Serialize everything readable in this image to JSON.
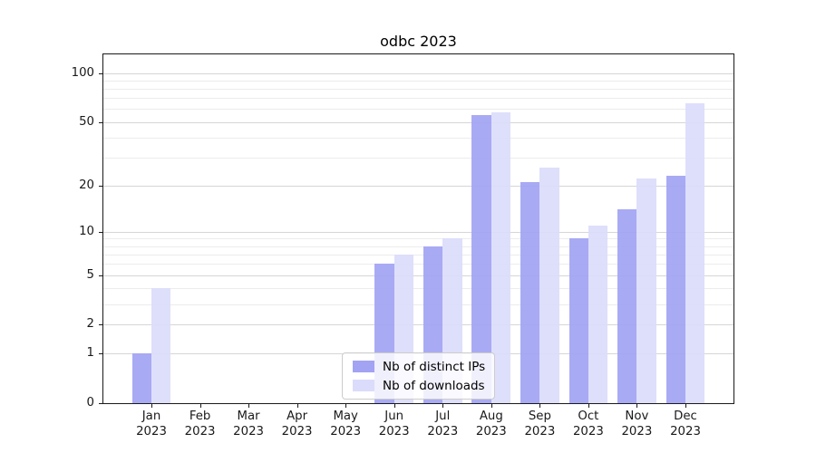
{
  "title": "odbc 2023",
  "legend": {
    "items": [
      {
        "label": "Nb of distinct IPs",
        "color": "#a2a3f3"
      },
      {
        "label": "Nb of downloads",
        "color": "#dbdcfb"
      }
    ]
  },
  "y_axis": {
    "tick_labels": [
      "100",
      "50",
      "20",
      "10",
      "5",
      "2",
      "1",
      "0"
    ]
  },
  "x_axis": {
    "months": [
      "Jan",
      "Feb",
      "Mar",
      "Apr",
      "May",
      "Jun",
      "Jul",
      "Aug",
      "Sep",
      "Oct",
      "Nov",
      "Dec"
    ],
    "year": "2023"
  },
  "chart_data": {
    "type": "bar",
    "title": "odbc 2023",
    "categories": [
      "Jan 2023",
      "Feb 2023",
      "Mar 2023",
      "Apr 2023",
      "May 2023",
      "Jun 2023",
      "Jul 2023",
      "Aug 2023",
      "Sep 2023",
      "Oct 2023",
      "Nov 2023",
      "Dec 2023"
    ],
    "series": [
      {
        "name": "Nb of distinct IPs",
        "color": "#a2a3f3",
        "values": [
          1,
          0,
          0,
          0,
          0,
          6,
          8,
          55,
          21,
          9,
          14,
          23
        ]
      },
      {
        "name": "Nb of downloads",
        "color": "#dbdcfb",
        "values": [
          4,
          0,
          0,
          0,
          0,
          7,
          9,
          57,
          26,
          11,
          22,
          65
        ]
      }
    ],
    "xlabel": "",
    "ylabel": "",
    "y_scale": "log1p",
    "y_ticks": [
      0,
      1,
      2,
      5,
      10,
      20,
      50,
      100
    ],
    "y_minor_gridlines": [
      3,
      4,
      6,
      7,
      8,
      9,
      30,
      40,
      60,
      70,
      80,
      90
    ],
    "ylim": [
      0,
      130
    ],
    "grid": true,
    "legend_position": "lower center",
    "bar_group_width": 0.8
  }
}
